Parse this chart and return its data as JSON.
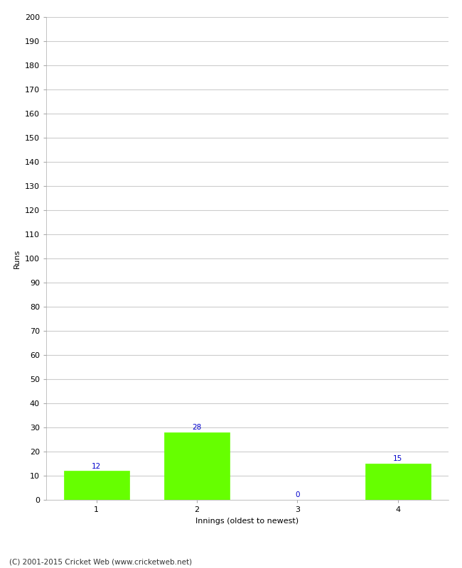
{
  "categories": [
    "1",
    "2",
    "3",
    "4"
  ],
  "values": [
    12,
    28,
    0,
    15
  ],
  "bar_color": "#66ff00",
  "bar_edgecolor": "#66ff00",
  "xlabel": "Innings (oldest to newest)",
  "ylabel": "Runs",
  "ylim": [
    0,
    200
  ],
  "yticks": [
    0,
    10,
    20,
    30,
    40,
    50,
    60,
    70,
    80,
    90,
    100,
    110,
    120,
    130,
    140,
    150,
    160,
    170,
    180,
    190,
    200
  ],
  "label_color": "#0000cc",
  "label_fontsize": 7.5,
  "axis_fontsize": 8,
  "tick_fontsize": 8,
  "footer_text": "(C) 2001-2015 Cricket Web (www.cricketweb.net)",
  "footer_fontsize": 7.5,
  "background_color": "#ffffff",
  "grid_color": "#cccccc",
  "bar_width": 0.65
}
